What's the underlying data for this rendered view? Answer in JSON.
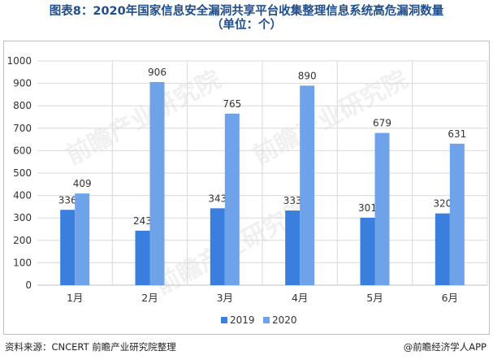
{
  "title_line1": "图表8：2020年国家信息安全漏洞共享平台收集整理信息系统高危漏洞数量",
  "title_line2": "（单位：个）",
  "footer": {
    "source": "资料来源：CNCERT 前瞻产业研究院整理",
    "brand": "@前瞻经济学人APP"
  },
  "colors": {
    "s2019": "#3a7fde",
    "s2020": "#6ea3ea",
    "grid": "#d9d9d9"
  },
  "chart_data": {
    "type": "bar",
    "title": "2020年国家信息安全漏洞共享平台收集整理信息系统高危漏洞数量",
    "categories": [
      "1月",
      "2月",
      "3月",
      "4月",
      "5月",
      "6月"
    ],
    "series": [
      {
        "name": "2019",
        "values": [
          336,
          243,
          343,
          333,
          301,
          320
        ]
      },
      {
        "name": "2020",
        "values": [
          409,
          906,
          765,
          890,
          679,
          631
        ]
      }
    ],
    "ylim": [
      0,
      1000
    ],
    "yticks": [
      0,
      100,
      200,
      300,
      400,
      500,
      600,
      700,
      800,
      900,
      1000
    ],
    "xlabel": "",
    "ylabel": "",
    "grid": true,
    "legend": "bottom-center"
  }
}
